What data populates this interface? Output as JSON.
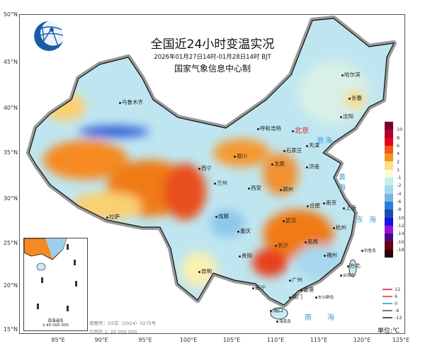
{
  "title": "全国近24小时变温实况",
  "subtitle": "2026年01月27日14时-01月28日14时 BJT",
  "organization": "国家气象信息中心制",
  "logo": "cma-globe-logo",
  "latitude_labels": [
    "50°N",
    "45°N",
    "40°N",
    "35°N",
    "30°N",
    "25°N",
    "20°N",
    "15°N"
  ],
  "longitude_labels": [
    "85°E",
    "90°E",
    "95°E",
    "100°E",
    "105°E",
    "110°E",
    "115°E",
    "120°E",
    "125°E"
  ],
  "colorbar": {
    "ticks": [
      "10",
      "8",
      "6",
      "4",
      "2",
      "1",
      "-1",
      "-2",
      "-4",
      "-6",
      "-8",
      "-10",
      "-12",
      "-14",
      "-16",
      "-18"
    ],
    "colors": [
      "#7a0022",
      "#b0002e",
      "#e8001c",
      "#f05a14",
      "#f7941d",
      "#fbe08a",
      "#fbfbd6",
      "#c4efe4",
      "#a6d8ee",
      "#7cb6dc",
      "#2a7fe0",
      "#1a4fb0",
      "#1414e8",
      "#9a10d8",
      "#4a0a80",
      "#6a0010",
      "#2a0008"
    ]
  },
  "contour_legend": [
    {
      "label": "12",
      "color": "#e05070"
    },
    {
      "label": "6",
      "color": "#ee6060"
    },
    {
      "label": "0",
      "color": "#5ab0e0"
    },
    {
      "label": "-6",
      "color": "#8a6a9a"
    },
    {
      "label": "-12",
      "color": "#555555"
    }
  ],
  "unit": "单位:℃",
  "review_number": "审图号：GS京（2024）0275号",
  "scale": "比例尺 1: 20 000 000",
  "inset": {
    "title": "南海诸岛",
    "scale": "1:40 000 000"
  },
  "cities": [
    {
      "name": "北京",
      "capital": true
    },
    {
      "name": "天津"
    },
    {
      "name": "石家庄"
    },
    {
      "name": "太原"
    },
    {
      "name": "呼和浩特"
    },
    {
      "name": "银川"
    },
    {
      "name": "西宁"
    },
    {
      "name": "兰州"
    },
    {
      "name": "西安"
    },
    {
      "name": "郑州"
    },
    {
      "name": "济南"
    },
    {
      "name": "合肥"
    },
    {
      "name": "哈尔滨"
    },
    {
      "name": "长春"
    },
    {
      "name": "沈阳"
    },
    {
      "name": "乌鲁木齐"
    },
    {
      "name": "成都"
    },
    {
      "name": "重庆"
    },
    {
      "name": "贵阳"
    },
    {
      "name": "昆明"
    },
    {
      "name": "南宁"
    },
    {
      "name": "武汉"
    },
    {
      "name": "长沙"
    },
    {
      "name": "南昌"
    },
    {
      "name": "杭州"
    },
    {
      "name": "南京"
    },
    {
      "name": "上海"
    },
    {
      "name": "福州"
    },
    {
      "name": "台北"
    },
    {
      "name": "广州"
    },
    {
      "name": "香港"
    },
    {
      "name": "澳门"
    },
    {
      "name": "海口"
    },
    {
      "name": "拉萨"
    }
  ],
  "seas": [
    "渤海",
    "黄海",
    "东海",
    "南海"
  ],
  "islands": [
    "台湾岛",
    "钓鱼岛",
    "东沙群岛",
    "海南岛"
  ]
}
